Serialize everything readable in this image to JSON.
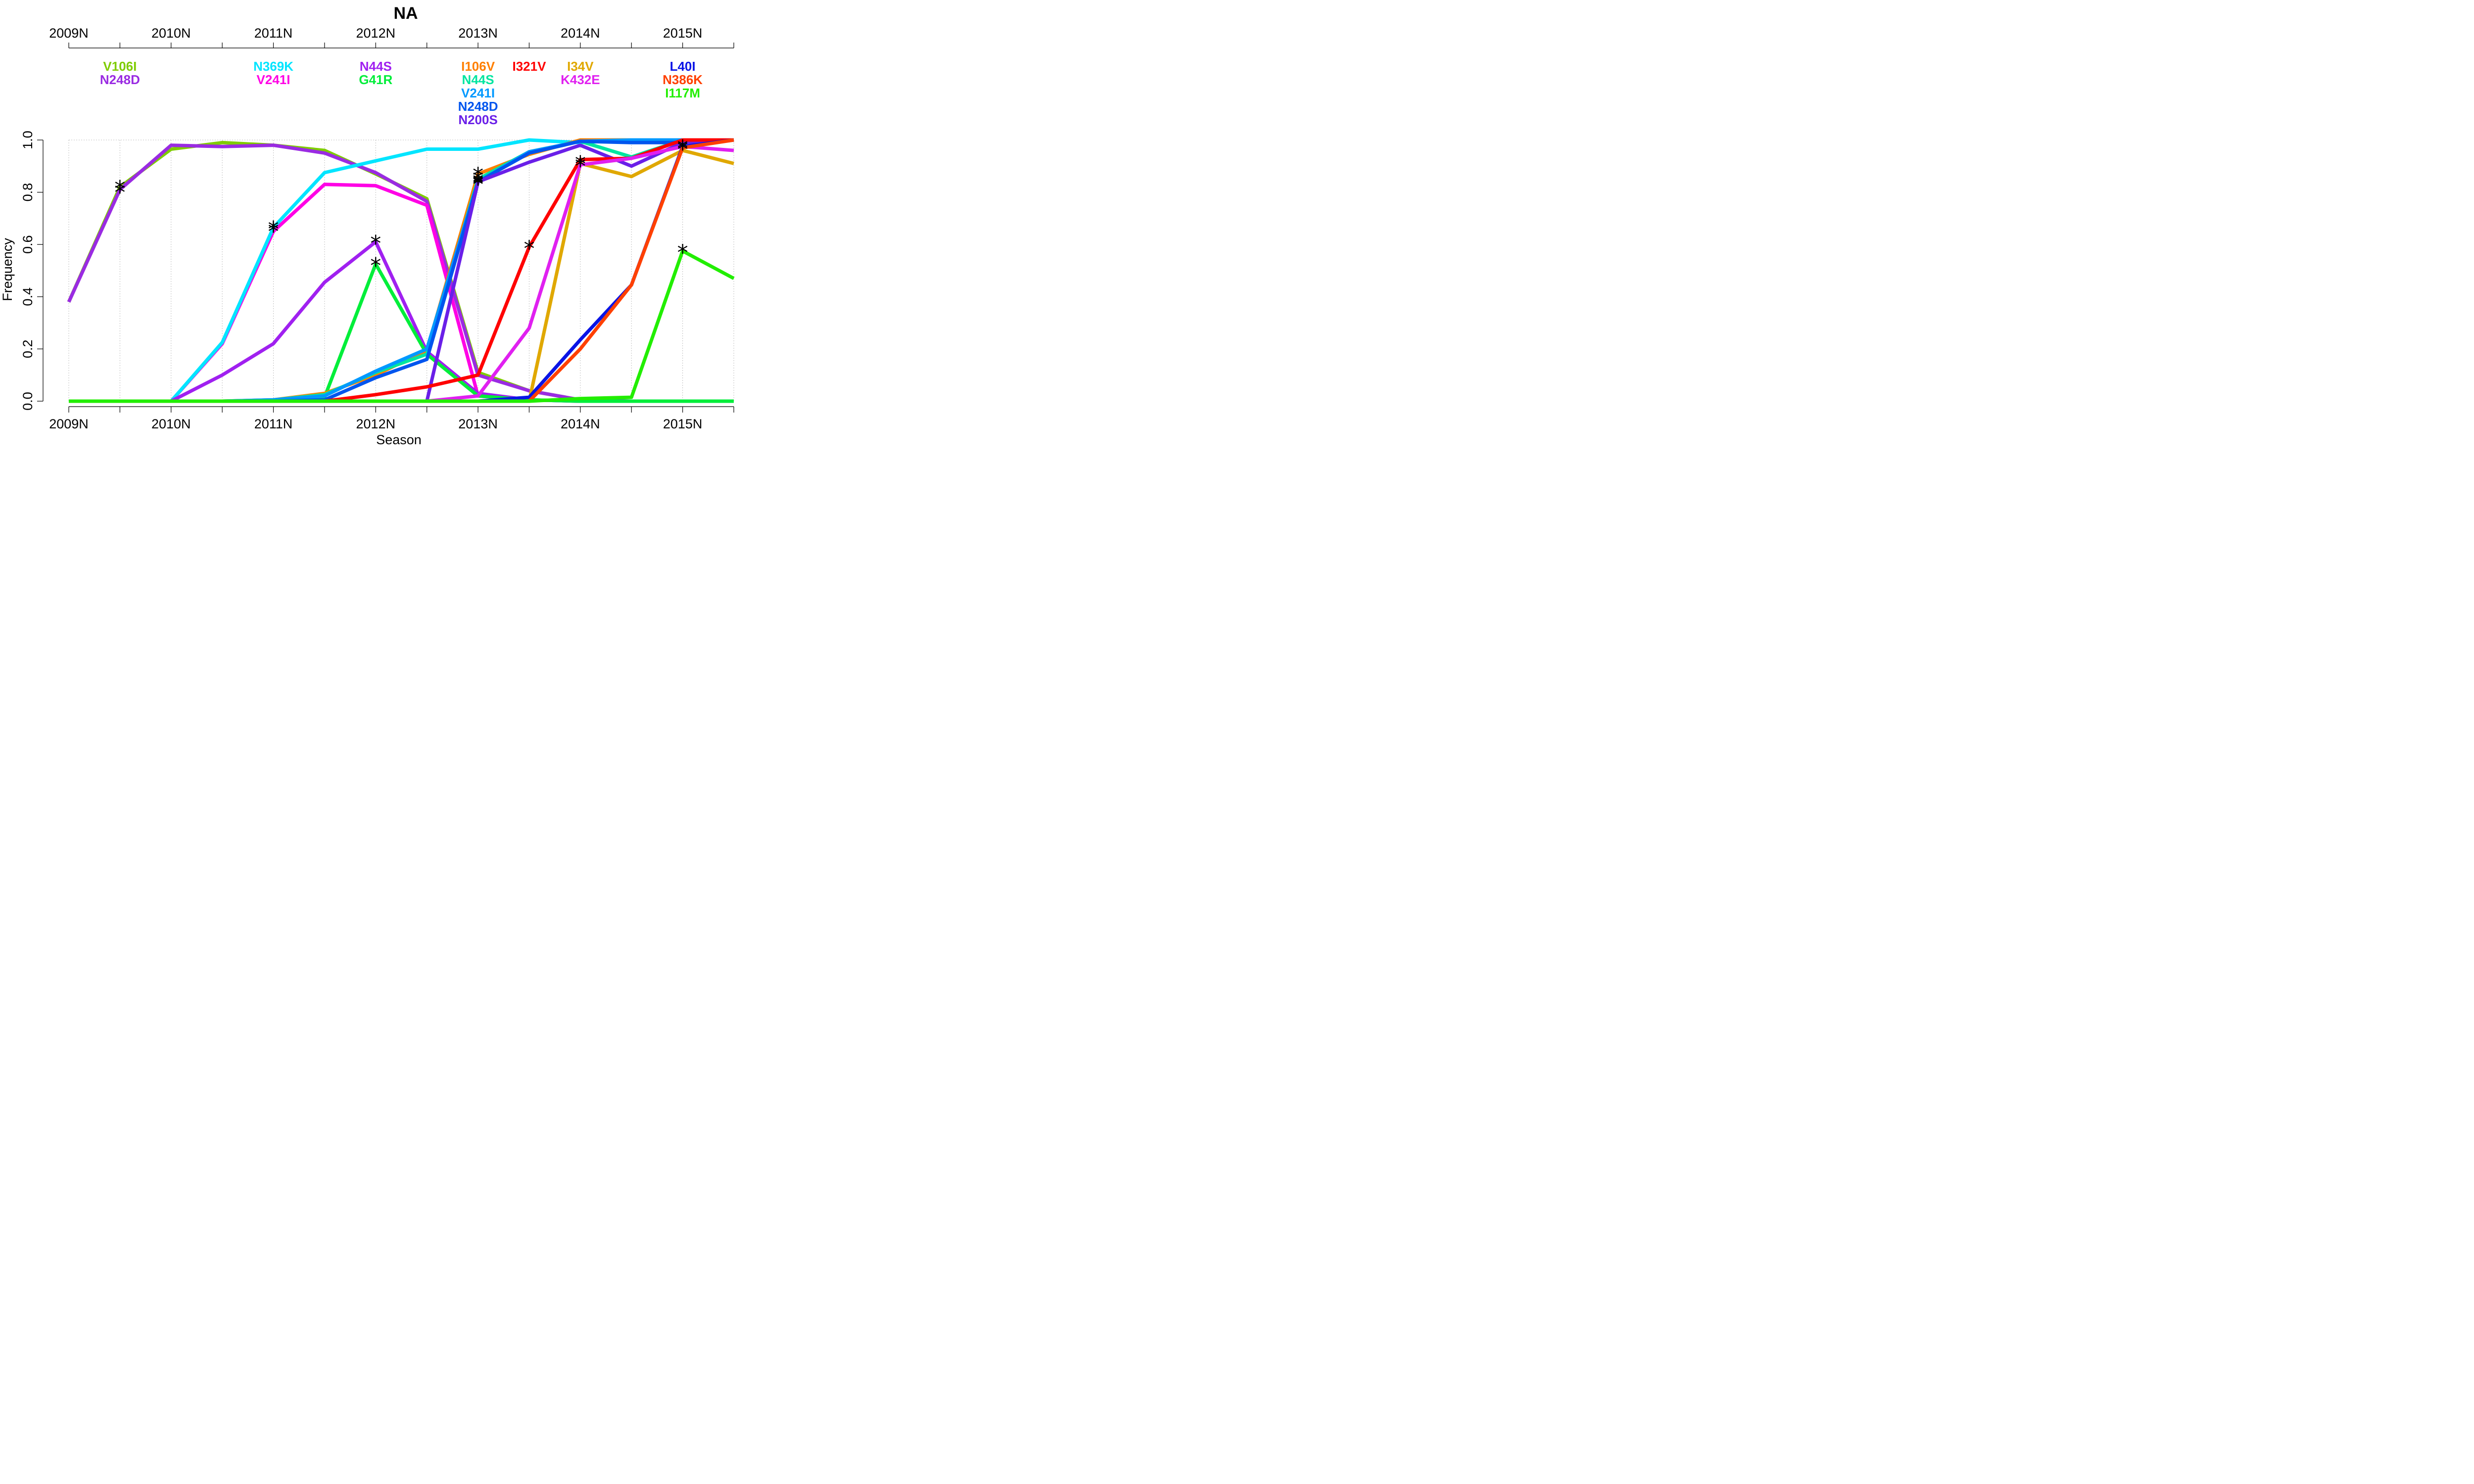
{
  "chart_data": {
    "type": "line",
    "title": "NA",
    "xlabel": "Season",
    "ylabel": "Frequency",
    "x": [
      0,
      0.5,
      1,
      1.5,
      2,
      2.5,
      3,
      3.5,
      4,
      4.5,
      5,
      5.5,
      6,
      6.5
    ],
    "season_ticks": [
      {
        "x": 0,
        "label": "2009N"
      },
      {
        "x": 1,
        "label": "2010N"
      },
      {
        "x": 2,
        "label": "2011N"
      },
      {
        "x": 3,
        "label": "2012N"
      },
      {
        "x": 4,
        "label": "2013N"
      },
      {
        "x": 5,
        "label": "2014N"
      },
      {
        "x": 6,
        "label": "2015N"
      }
    ],
    "xlim": [
      0,
      6.5
    ],
    "ylim": [
      0,
      1
    ],
    "y_ticks": [
      {
        "value": 0,
        "label": "0.0"
      },
      {
        "value": 0.2,
        "label": "0.2"
      },
      {
        "value": 0.4,
        "label": "0.4"
      },
      {
        "value": 0.6,
        "label": "0.6"
      },
      {
        "value": 0.8,
        "label": "0.8"
      },
      {
        "value": 1.0,
        "label": "1.0"
      }
    ],
    "grid": true,
    "label_groups": [
      {
        "x": 0.5,
        "labels": [
          {
            "text": "V106I",
            "color": "#7FCC00"
          },
          {
            "text": "N248D",
            "color": "#9A2BE2"
          }
        ]
      },
      {
        "x": 2,
        "labels": [
          {
            "text": "N369K",
            "color": "#00E5FF"
          },
          {
            "text": "V241I",
            "color": "#FF00E5"
          }
        ]
      },
      {
        "x": 3,
        "labels": [
          {
            "text": "N44S",
            "color": "#A020F0"
          },
          {
            "text": "G41R",
            "color": "#00EE3A"
          }
        ]
      },
      {
        "x": 4,
        "labels": [
          {
            "text": "I106V",
            "color": "#FF7F00"
          },
          {
            "text": "N44S",
            "color": "#00E5A0"
          },
          {
            "text": "V241I",
            "color": "#0099FF"
          },
          {
            "text": "N248D",
            "color": "#0055EE"
          },
          {
            "text": "N200S",
            "color": "#6A1FE8"
          }
        ]
      },
      {
        "x": 4.5,
        "labels": [
          {
            "text": "I321V",
            "color": "#FF0000"
          }
        ]
      },
      {
        "x": 5,
        "labels": [
          {
            "text": "I34V",
            "color": "#E0A800"
          },
          {
            "text": "K432E",
            "color": "#E020F0"
          }
        ]
      },
      {
        "x": 6,
        "labels": [
          {
            "text": "L40I",
            "color": "#0A14E6"
          },
          {
            "text": "N386K",
            "color": "#FF4000"
          },
          {
            "text": "I117M",
            "color": "#22EE00"
          }
        ]
      }
    ],
    "series": [
      {
        "name": "V106I",
        "color": "#7FCC00",
        "values": [
          0.38,
          0.82,
          0.965,
          0.99,
          0.98,
          0.96,
          0.87,
          0.775,
          0.11,
          0.04,
          0.005,
          0.0,
          0.0,
          0.0
        ]
      },
      {
        "name": "N248D",
        "color": "#9A2BE2",
        "values": [
          0.38,
          0.81,
          0.98,
          0.975,
          0.98,
          0.95,
          0.875,
          0.765,
          0.1,
          0.04,
          0.005,
          0.0,
          0.0,
          0.0
        ]
      },
      {
        "name": "V241I",
        "color": "#FF00E5",
        "values": [
          0.0,
          0.0,
          0.0,
          0.22,
          0.65,
          0.83,
          0.825,
          0.75,
          0.02,
          0.005,
          0.0,
          0.0,
          0.0,
          0.0
        ]
      },
      {
        "name": "N369K",
        "color": "#00E5FF",
        "values": [
          0.0,
          0.0,
          0.0,
          0.225,
          0.665,
          0.875,
          0.92,
          0.965,
          0.965,
          1.0,
          0.99,
          1.0,
          1.0,
          1.0
        ]
      },
      {
        "name": "N44S",
        "color": "#A020F0",
        "values": [
          0.0,
          0.0,
          0.0,
          0.1,
          0.22,
          0.455,
          0.61,
          0.19,
          0.03,
          0.005,
          0.0,
          0.0,
          0.0,
          0.0
        ]
      },
      {
        "name": "G41R",
        "color": "#00EE3A",
        "values": [
          0.0,
          0.0,
          0.0,
          0.0,
          0.0,
          0.015,
          0.525,
          0.18,
          0.02,
          0.005,
          0.0,
          0.0,
          0.0,
          0.0
        ]
      },
      {
        "name": "I106V",
        "color": "#FF7F00",
        "values": [
          0.0,
          0.0,
          0.0,
          0.0,
          0.005,
          0.03,
          0.1,
          0.195,
          0.87,
          0.945,
          1.0,
          1.0,
          1.0,
          1.0
        ]
      },
      {
        "name": "N44S",
        "color": "#00E5A0",
        "values": [
          0.0,
          0.0,
          0.0,
          0.0,
          0.005,
          0.025,
          0.11,
          0.18,
          0.85,
          0.955,
          0.995,
          0.935,
          1.0,
          1.0
        ]
      },
      {
        "name": "V241I",
        "color": "#0099FF",
        "values": [
          0.0,
          0.0,
          0.0,
          0.0,
          0.005,
          0.02,
          0.115,
          0.2,
          0.84,
          0.955,
          0.995,
          1.0,
          1.0,
          1.0
        ]
      },
      {
        "name": "N248D",
        "color": "#0055EE",
        "values": [
          0.0,
          0.0,
          0.0,
          0.0,
          0.0,
          0.005,
          0.09,
          0.16,
          0.84,
          0.95,
          0.995,
          0.99,
          0.99,
          1.0
        ]
      },
      {
        "name": "N200S",
        "color": "#6A1FE8",
        "values": [
          0.0,
          0.0,
          0.0,
          0.0,
          0.0,
          0.0,
          0.0,
          0.0,
          0.84,
          0.915,
          0.98,
          0.9,
          0.99,
          1.0
        ]
      },
      {
        "name": "I321V",
        "color": "#FF0000",
        "values": [
          0.0,
          0.0,
          0.0,
          0.0,
          0.0,
          0.0,
          0.025,
          0.055,
          0.1,
          0.59,
          0.925,
          0.93,
          1.0,
          1.0
        ]
      },
      {
        "name": "I34V",
        "color": "#E0A800",
        "values": [
          0.0,
          0.0,
          0.0,
          0.0,
          0.0,
          0.0,
          0.0,
          0.0,
          0.0,
          0.0,
          0.91,
          0.86,
          0.96,
          0.91
        ]
      },
      {
        "name": "K432E",
        "color": "#E020F0",
        "values": [
          0.0,
          0.0,
          0.0,
          0.0,
          0.0,
          0.0,
          0.0,
          0.0,
          0.02,
          0.28,
          0.905,
          0.93,
          0.975,
          0.96
        ]
      },
      {
        "name": "L40I",
        "color": "#0A14E6",
        "values": [
          0.0,
          0.0,
          0.0,
          0.0,
          0.0,
          0.0,
          0.0,
          0.0,
          0.0,
          0.015,
          0.235,
          0.445,
          0.975,
          1.0
        ]
      },
      {
        "name": "N386K",
        "color": "#FF4000",
        "values": [
          0.0,
          0.0,
          0.0,
          0.0,
          0.0,
          0.0,
          0.0,
          0.0,
          0.0,
          0.0,
          0.2,
          0.445,
          0.97,
          1.0
        ]
      },
      {
        "name": "I117M",
        "color": "#22EE00",
        "values": [
          0.0,
          0.0,
          0.0,
          0.0,
          0.0,
          0.0,
          0.0,
          0.0,
          0.0,
          0.0,
          0.01,
          0.015,
          0.575,
          0.47
        ]
      }
    ],
    "markers": [
      {
        "symbol": "*",
        "x": 0.5,
        "y": 0.82
      },
      {
        "symbol": "*",
        "x": 0.5,
        "y": 0.805
      },
      {
        "symbol": "*",
        "x": 2,
        "y": 0.665
      },
      {
        "symbol": "*",
        "x": 2,
        "y": 0.655
      },
      {
        "symbol": "*",
        "x": 3,
        "y": 0.61
      },
      {
        "symbol": "*",
        "x": 3,
        "y": 0.525
      },
      {
        "symbol": "*",
        "x": 4,
        "y": 0.87
      },
      {
        "symbol": "*",
        "x": 4,
        "y": 0.855
      },
      {
        "symbol": "*",
        "x": 4,
        "y": 0.845
      },
      {
        "symbol": "*",
        "x": 4,
        "y": 0.84
      },
      {
        "symbol": "*",
        "x": 4,
        "y": 0.835
      },
      {
        "symbol": "*",
        "x": 4.5,
        "y": 0.59
      },
      {
        "symbol": "*",
        "x": 5,
        "y": 0.915
      },
      {
        "symbol": "*",
        "x": 5,
        "y": 0.905
      },
      {
        "symbol": "*",
        "x": 6,
        "y": 0.975
      },
      {
        "symbol": "*",
        "x": 6,
        "y": 0.97
      },
      {
        "symbol": "*",
        "x": 6,
        "y": 0.575
      }
    ]
  }
}
